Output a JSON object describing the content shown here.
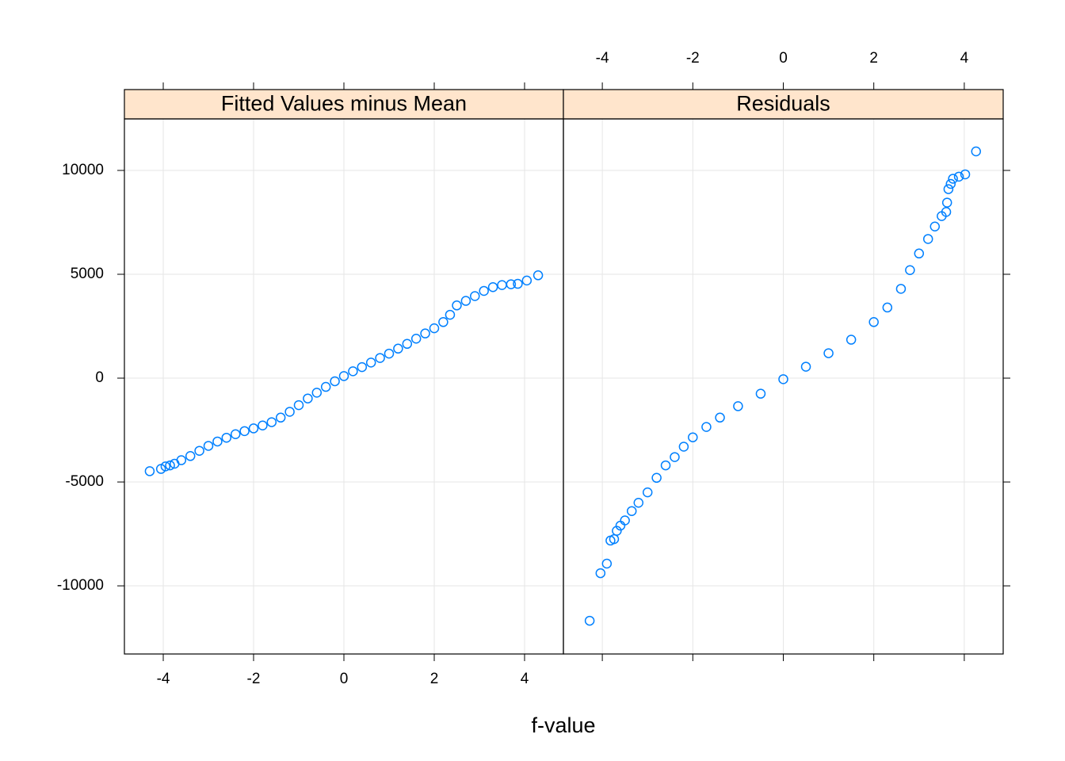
{
  "chart_data": [
    {
      "type": "scatter",
      "title": "Fitted Values minus Mean",
      "xlabel": "f-value",
      "color": "#0080ff",
      "strip_color": "#ffe5cc",
      "grid": true,
      "xlim": [
        -4.86,
        4.86
      ],
      "xticks": [
        -4,
        -2,
        0,
        2,
        4
      ],
      "ylim": [
        -13280,
        12480
      ],
      "yticks": [
        -10000,
        -5000,
        0,
        5000,
        10000
      ],
      "x": [
        -4.3,
        -4.05,
        -3.95,
        -3.85,
        -3.75,
        -3.6,
        -3.4,
        -3.2,
        -3.0,
        -2.8,
        -2.6,
        -2.4,
        -2.2,
        -2.0,
        -1.8,
        -1.6,
        -1.4,
        -1.2,
        -1.0,
        -0.8,
        -0.6,
        -0.4,
        -0.2,
        0.0,
        0.2,
        0.4,
        0.6,
        0.8,
        1.0,
        1.2,
        1.4,
        1.6,
        1.8,
        2.0,
        2.2,
        2.35,
        2.5,
        2.7,
        2.9,
        3.1,
        3.3,
        3.5,
        3.7,
        3.85,
        4.05,
        4.3
      ],
      "values": [
        -4480,
        -4370,
        -4250,
        -4200,
        -4120,
        -3950,
        -3750,
        -3500,
        -3260,
        -3050,
        -2870,
        -2700,
        -2550,
        -2420,
        -2280,
        -2120,
        -1900,
        -1620,
        -1300,
        -980,
        -700,
        -420,
        -150,
        100,
        330,
        530,
        750,
        970,
        1180,
        1420,
        1650,
        1900,
        2150,
        2400,
        2700,
        3050,
        3500,
        3720,
        3950,
        4200,
        4380,
        4480,
        4520,
        4540,
        4700,
        4950
      ]
    },
    {
      "type": "scatter",
      "title": "Residuals",
      "color": "#0080ff",
      "strip_color": "#ffe5cc",
      "grid": true,
      "xlim": [
        -4.86,
        4.86
      ],
      "xticks": [
        -4,
        -2,
        0,
        2,
        4
      ],
      "ylim": [
        -13280,
        12480
      ],
      "yticks": [
        -10000,
        -5000,
        0,
        5000,
        10000
      ],
      "x": [
        -4.28,
        -4.04,
        -3.9,
        -3.82,
        -3.74,
        -3.68,
        -3.6,
        -3.5,
        -3.35,
        -3.2,
        -3.0,
        -2.8,
        -2.6,
        -2.4,
        -2.2,
        -2.0,
        -1.7,
        -1.4,
        -1.0,
        -0.5,
        0.0,
        0.5,
        1.0,
        1.5,
        2.0,
        2.3,
        2.6,
        2.8,
        3.0,
        3.2,
        3.35,
        3.5,
        3.6,
        3.62,
        3.65,
        3.7,
        3.75,
        3.88,
        4.02,
        4.26
      ],
      "values": [
        -11680,
        -9390,
        -8930,
        -7820,
        -7750,
        -7350,
        -7100,
        -6850,
        -6400,
        -6000,
        -5500,
        -4800,
        -4200,
        -3800,
        -3300,
        -2850,
        -2350,
        -1900,
        -1350,
        -750,
        -50,
        550,
        1200,
        1850,
        2700,
        3400,
        4300,
        5200,
        6000,
        6700,
        7300,
        7800,
        8000,
        8450,
        9100,
        9350,
        9600,
        9700,
        9810,
        10915
      ]
    }
  ]
}
